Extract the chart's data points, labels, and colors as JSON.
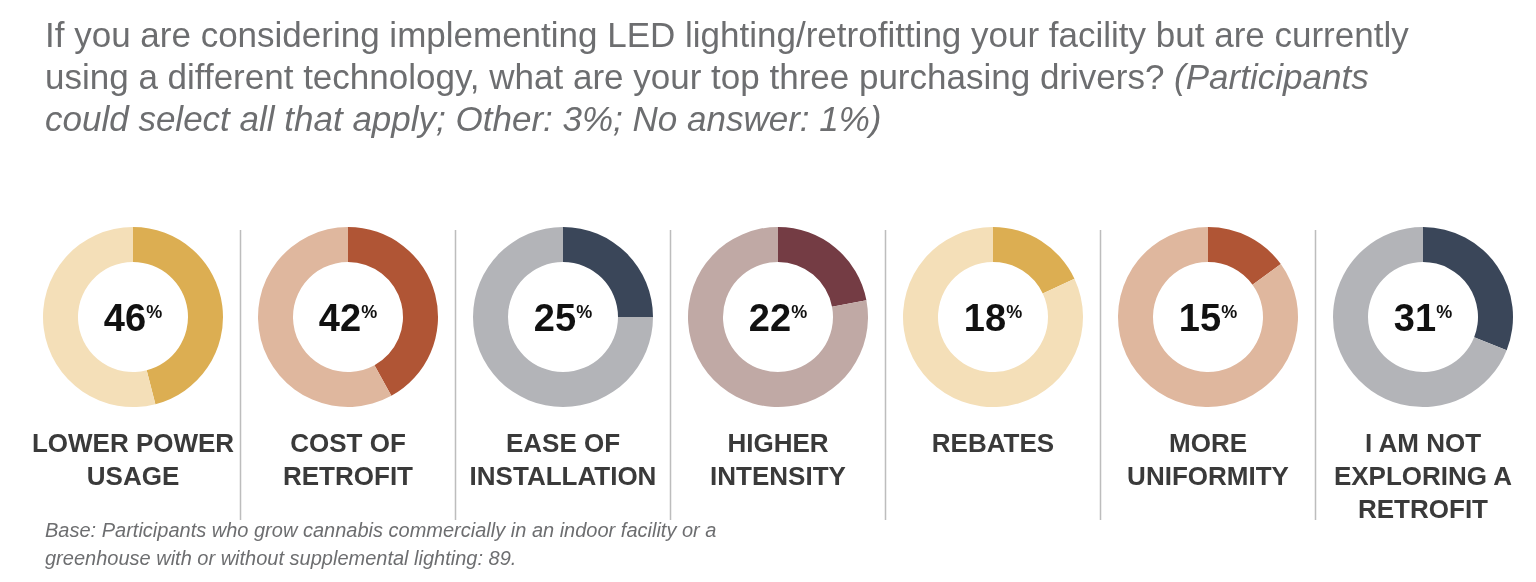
{
  "chart_data": [
    {
      "type": "donut",
      "title": "If you are considering implementing LED lighting/retrofitting your facility but are currently using a different technology, what are your top three purchasing drivers?",
      "subtitle": "(Participants could select all that apply; Other: 3%; No answer: 1%)",
      "xlabel": "LOWER POWER USAGE",
      "annotations": [
        "46$^{%}$",
        "Base: Participants who grow cannabis commercially in an indoor facility or a greenhouse with or without supplemental lighting: 89."
      ],
      "categories": [
        null,
        null
      ],
      "values": [
        46,
        54
      ],
      "colors": [
        "#dcae52",
        "#f4dfb8"
      ]
    },
    {
      "type": "donut",
      "xlabel": "COST OF RETROFIT",
      "annotations": [
        "42$^{%}$"
      ],
      "categories": [
        null,
        null
      ],
      "values": [
        42,
        58
      ],
      "colors": [
        "#b05535",
        "#dfb79e"
      ]
    },
    {
      "type": "donut",
      "xlabel": "EASE OF INSTALLATION",
      "annotations": [
        "25$^{%}$"
      ],
      "categories": [
        null,
        null
      ],
      "values": [
        25,
        75
      ],
      "colors": [
        "#3a4659",
        "#b3b4b8"
      ]
    },
    {
      "type": "donut",
      "xlabel": "HIGHER INTENSITY",
      "annotations": [
        "22$^{%}$"
      ],
      "categories": [
        null,
        null
      ],
      "values": [
        22,
        78
      ],
      "colors": [
        "#743c44",
        "#c0a9a5"
      ]
    },
    {
      "type": "donut",
      "xlabel": "REBATES",
      "annotations": [
        "18$^{%}$"
      ],
      "categories": [
        null,
        null
      ],
      "values": [
        18,
        82
      ],
      "colors": [
        "#dcae52",
        "#f4dfb8"
      ]
    },
    {
      "type": "donut",
      "xlabel": "MORE UNIFORMITY",
      "annotations": [
        "15$^{%}$"
      ],
      "categories": [
        null,
        null
      ],
      "values": [
        15,
        85
      ],
      "colors": [
        "#b05535",
        "#dfb79e"
      ]
    },
    {
      "type": "donut",
      "xlabel": "I AM NOT EXPLORING A RETROFIT",
      "annotations": [
        "31$^{%}$"
      ],
      "categories": [
        null,
        null
      ],
      "values": [
        31,
        69
      ],
      "colors": [
        "#3a4659",
        "#b3b4b8"
      ]
    }
  ]
}
